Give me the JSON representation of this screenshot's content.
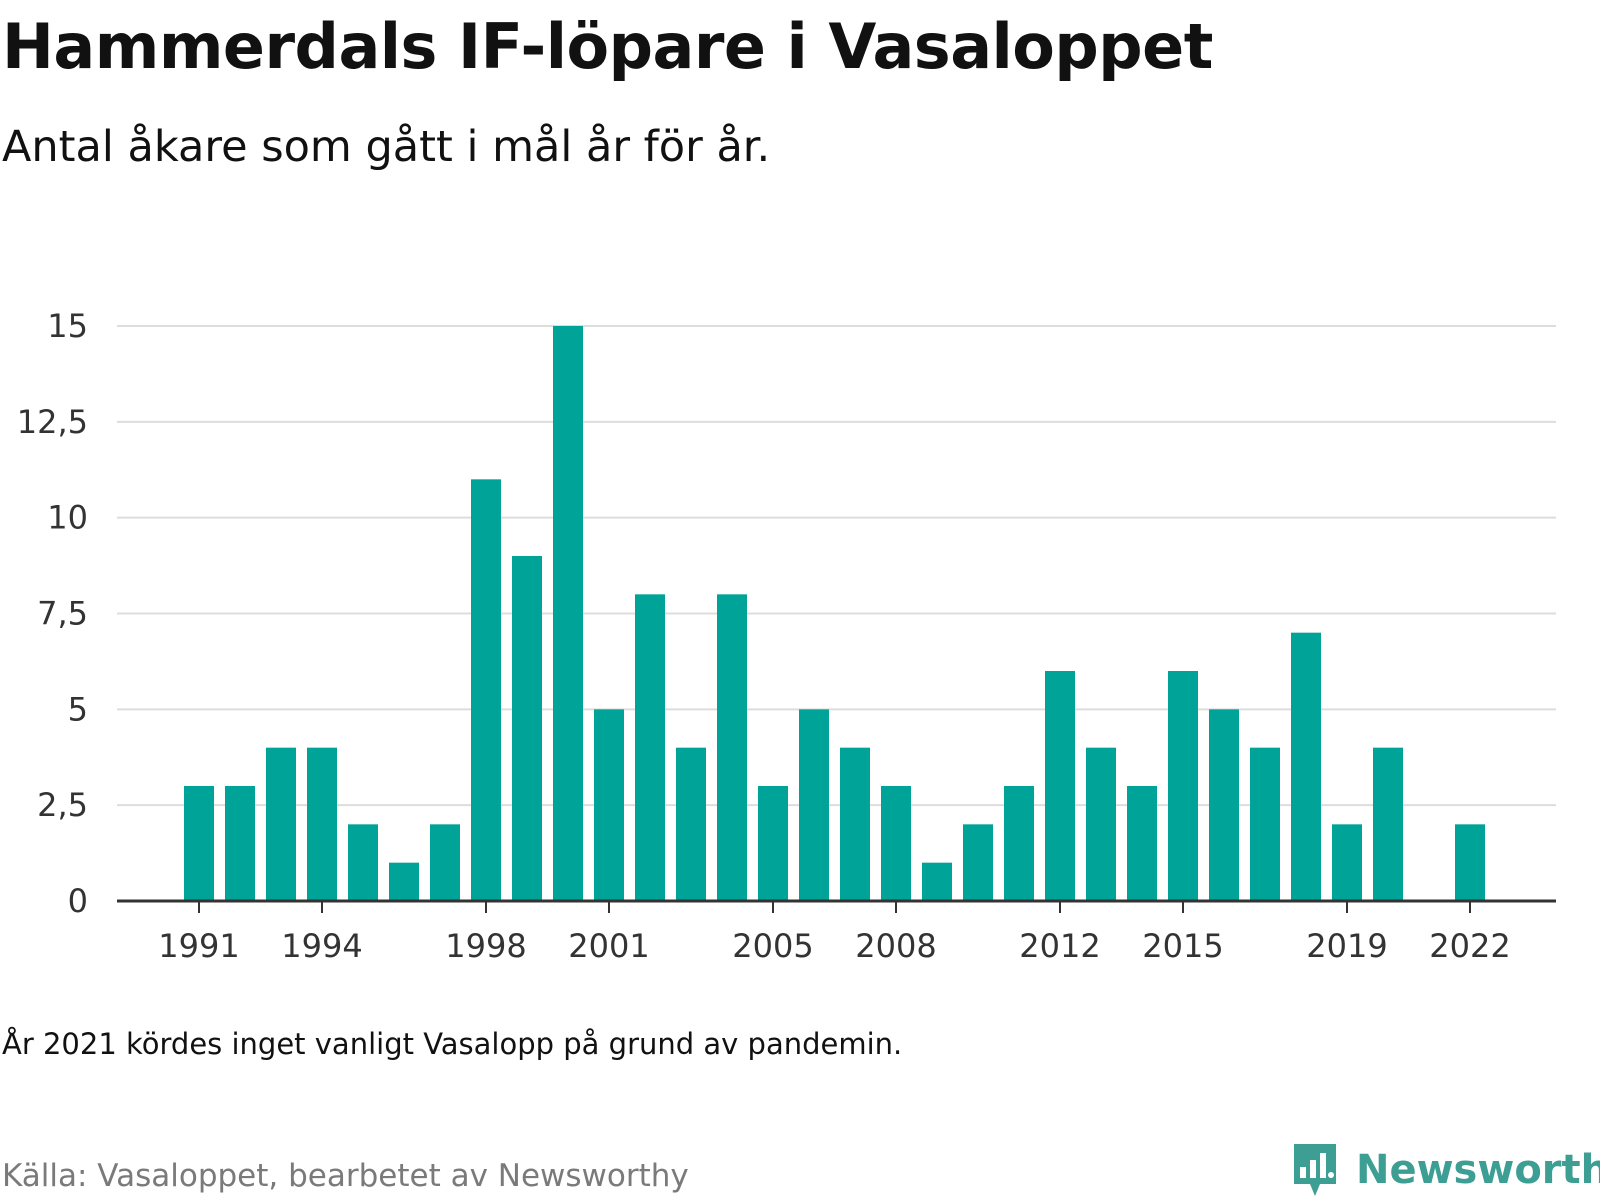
{
  "chart_data": {
    "type": "bar",
    "title": "Hammerdals IF-löpare i Vasaloppet",
    "subtitle": "Antal åkare som gått i mål år för år.",
    "x": [
      1991,
      1992,
      1993,
      1994,
      1995,
      1996,
      1997,
      1998,
      1999,
      2000,
      2001,
      2002,
      2003,
      2004,
      2005,
      2006,
      2007,
      2008,
      2009,
      2010,
      2011,
      2012,
      2013,
      2014,
      2015,
      2016,
      2017,
      2018,
      2019,
      2020,
      2021,
      2022
    ],
    "values": [
      3,
      3,
      4,
      4,
      2,
      1,
      2,
      11,
      9,
      15,
      5,
      8,
      4,
      8,
      3,
      5,
      4,
      3,
      1,
      2,
      3,
      6,
      4,
      3,
      6,
      5,
      4,
      7,
      2,
      4,
      null,
      2
    ],
    "x_tick_labels": [
      "1991",
      "1994",
      "1998",
      "2001",
      "2005",
      "2008",
      "2012",
      "2015",
      "2019",
      "2022"
    ],
    "y_tick_labels": [
      "0",
      "2,5",
      "5",
      "7,5",
      "10",
      "12,5",
      "15"
    ],
    "y_ticks": [
      0,
      2.5,
      5,
      7.5,
      10,
      12.5,
      15
    ],
    "ylim": [
      0,
      15
    ],
    "grid": true,
    "bar_color": "#00a398",
    "note": "År 2021 kördes inget vanligt Vasalopp på grund av pandemin.",
    "source": "Källa: Vasaloppet, bearbetet av Newsworthy"
  },
  "brand": {
    "name": "Newsworthy",
    "icon": "newsworthy-logo-icon",
    "color": "#3d9e93"
  }
}
